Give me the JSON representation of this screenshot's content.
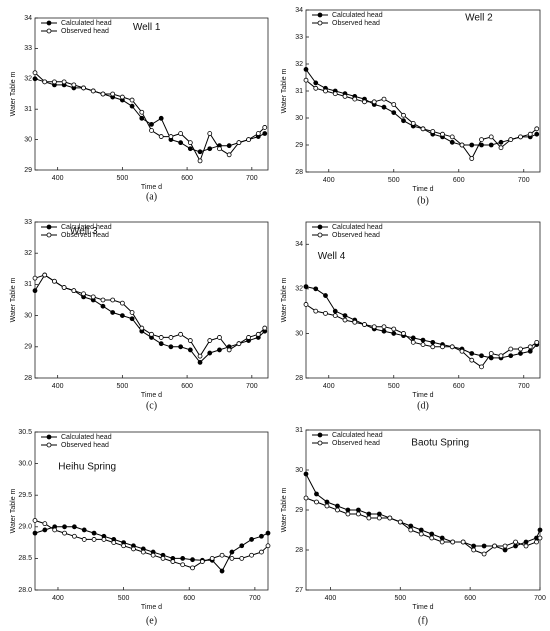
{
  "chart_data": [
    {
      "type": "line",
      "title": "Well 1",
      "panel_label": "(a)",
      "xlabel": "Time d",
      "ylabel": "Water Table m",
      "x": [
        365,
        380,
        395,
        410,
        425,
        440,
        455,
        470,
        485,
        500,
        515,
        530,
        545,
        560,
        575,
        590,
        605,
        620,
        635,
        650,
        665,
        680,
        695,
        710,
        720
      ],
      "xlim": [
        365,
        725
      ],
      "xticks": [
        400,
        500,
        600,
        700
      ],
      "ylim": [
        29,
        34
      ],
      "yticks": [
        29,
        30,
        31,
        32,
        33,
        34
      ],
      "legend": "upper left",
      "series": [
        {
          "name": "Calculated head",
          "color": "#000000",
          "marker": "filled",
          "values": [
            32.0,
            31.9,
            31.8,
            31.8,
            31.7,
            31.7,
            31.6,
            31.5,
            31.4,
            31.3,
            31.1,
            30.7,
            30.5,
            30.7,
            30.0,
            29.9,
            29.7,
            29.6,
            29.7,
            29.8,
            29.8,
            29.9,
            30.0,
            30.1,
            30.2
          ]
        },
        {
          "name": "Observed head",
          "color": "#000000",
          "marker": "open",
          "values": [
            32.2,
            31.9,
            31.9,
            31.9,
            31.8,
            31.7,
            31.6,
            31.5,
            31.5,
            31.4,
            31.3,
            30.9,
            30.3,
            30.1,
            30.1,
            30.2,
            29.9,
            29.3,
            30.2,
            29.7,
            29.5,
            29.9,
            30.0,
            30.2,
            30.4
          ]
        }
      ]
    },
    {
      "type": "line",
      "title": "Well 2",
      "panel_label": "(b)",
      "xlabel": "Time d",
      "ylabel": "Water Table m",
      "x": [
        365,
        380,
        395,
        410,
        425,
        440,
        455,
        470,
        485,
        500,
        515,
        530,
        545,
        560,
        575,
        590,
        605,
        620,
        635,
        650,
        665,
        680,
        695,
        710,
        720
      ],
      "xlim": [
        365,
        725
      ],
      "xticks": [
        400,
        500,
        600,
        700
      ],
      "ylim": [
        28,
        34
      ],
      "yticks": [
        28,
        29,
        30,
        31,
        32,
        33,
        34
      ],
      "legend": "upper left",
      "series": [
        {
          "name": "Calculated head",
          "color": "#000000",
          "marker": "filled",
          "values": [
            31.8,
            31.3,
            31.1,
            31.0,
            30.9,
            30.8,
            30.7,
            30.5,
            30.4,
            30.2,
            29.9,
            29.7,
            29.6,
            29.4,
            29.3,
            29.1,
            29.0,
            29.0,
            29.0,
            29.0,
            29.1,
            29.2,
            29.3,
            29.3,
            29.4
          ]
        },
        {
          "name": "Observed head",
          "color": "#000000",
          "marker": "open",
          "values": [
            31.4,
            31.1,
            31.0,
            30.9,
            30.8,
            30.7,
            30.6,
            30.6,
            30.7,
            30.5,
            30.1,
            29.8,
            29.6,
            29.5,
            29.4,
            29.3,
            29.0,
            28.5,
            29.2,
            29.3,
            28.9,
            29.2,
            29.3,
            29.4,
            29.6
          ]
        }
      ]
    },
    {
      "type": "line",
      "title": "Well 3",
      "panel_label": "(c)",
      "xlabel": "Time d",
      "ylabel": "Water Table m",
      "x": [
        365,
        380,
        395,
        410,
        425,
        440,
        455,
        470,
        485,
        500,
        515,
        530,
        545,
        560,
        575,
        590,
        605,
        620,
        635,
        650,
        665,
        680,
        695,
        710,
        720
      ],
      "xlim": [
        365,
        725
      ],
      "xticks": [
        400,
        500,
        600,
        700
      ],
      "ylim": [
        28,
        33
      ],
      "yticks": [
        28,
        29,
        30,
        31,
        32,
        33
      ],
      "legend": "upper left",
      "series": [
        {
          "name": "Calculated head",
          "color": "#000000",
          "marker": "filled",
          "values": [
            30.8,
            31.3,
            31.1,
            30.9,
            30.8,
            30.6,
            30.5,
            30.3,
            30.1,
            30.0,
            29.9,
            29.5,
            29.3,
            29.1,
            29.0,
            29.0,
            28.9,
            28.5,
            28.8,
            28.9,
            29.0,
            29.1,
            29.2,
            29.3,
            29.5
          ]
        },
        {
          "name": "Observed head",
          "color": "#000000",
          "marker": "open",
          "values": [
            31.2,
            31.3,
            31.1,
            30.9,
            30.8,
            30.7,
            30.6,
            30.5,
            30.5,
            30.4,
            30.1,
            29.6,
            29.4,
            29.3,
            29.3,
            29.4,
            29.2,
            28.7,
            29.2,
            29.3,
            28.9,
            29.1,
            29.3,
            29.4,
            29.6
          ]
        }
      ]
    },
    {
      "type": "line",
      "title": "Well 4",
      "panel_label": "(d)",
      "xlabel": "Time d",
      "ylabel": "Water Table m",
      "x": [
        365,
        380,
        395,
        410,
        425,
        440,
        455,
        470,
        485,
        500,
        515,
        530,
        545,
        560,
        575,
        590,
        605,
        620,
        635,
        650,
        665,
        680,
        695,
        710,
        720
      ],
      "xlim": [
        365,
        725
      ],
      "xticks": [
        400,
        500,
        600,
        700
      ],
      "ylim": [
        28,
        35
      ],
      "yticks": [
        28,
        30,
        32,
        34
      ],
      "legend": "upper left",
      "series": [
        {
          "name": "Calculated head",
          "color": "#000000",
          "marker": "filled",
          "values": [
            32.1,
            32.0,
            31.7,
            31.0,
            30.8,
            30.6,
            30.4,
            30.2,
            30.1,
            30.0,
            29.9,
            29.8,
            29.7,
            29.6,
            29.5,
            29.4,
            29.3,
            29.1,
            29.0,
            28.9,
            28.9,
            29.0,
            29.1,
            29.2,
            29.5
          ]
        },
        {
          "name": "Observed head",
          "color": "#000000",
          "marker": "open",
          "values": [
            31.3,
            31.0,
            30.9,
            30.8,
            30.6,
            30.5,
            30.4,
            30.3,
            30.3,
            30.2,
            30.0,
            29.6,
            29.5,
            29.4,
            29.4,
            29.4,
            29.2,
            28.8,
            28.5,
            29.1,
            29.0,
            29.3,
            29.3,
            29.4,
            29.6
          ]
        }
      ]
    },
    {
      "type": "line",
      "title": "Heihu Spring",
      "panel_label": "(e)",
      "xlabel": "Time d",
      "ylabel": "Water Table m",
      "x": [
        365,
        380,
        395,
        410,
        425,
        440,
        455,
        470,
        485,
        500,
        515,
        530,
        545,
        560,
        575,
        590,
        605,
        620,
        635,
        650,
        665,
        680,
        695,
        710,
        720
      ],
      "xlim": [
        365,
        720
      ],
      "xticks": [
        400,
        500,
        600,
        700
      ],
      "ylim": [
        28,
        30.5
      ],
      "yticks": [
        {
          "value": 28,
          "label": "28.0"
        },
        28.5,
        {
          "value": 29,
          "label": "29.0"
        },
        29.5,
        {
          "value": 30,
          "label": "30.0"
        },
        30.5
      ],
      "legend": "upper left",
      "series": [
        {
          "name": "Calculated head",
          "color": "#000000",
          "marker": "filled",
          "values": [
            28.9,
            28.95,
            29.0,
            29.0,
            29.0,
            28.95,
            28.9,
            28.85,
            28.8,
            28.75,
            28.7,
            28.65,
            28.6,
            28.55,
            28.5,
            28.5,
            28.48,
            28.47,
            28.47,
            28.3,
            28.6,
            28.7,
            28.8,
            28.85,
            28.9
          ]
        },
        {
          "name": "Observed head",
          "color": "#000000",
          "marker": "open",
          "values": [
            29.1,
            29.05,
            28.95,
            28.9,
            28.85,
            28.8,
            28.8,
            28.8,
            28.75,
            28.7,
            28.65,
            28.6,
            28.55,
            28.5,
            28.45,
            28.4,
            28.35,
            28.45,
            28.5,
            28.55,
            28.5,
            28.5,
            28.55,
            28.6,
            28.7
          ]
        }
      ]
    },
    {
      "type": "line",
      "title": "Baotu Spring",
      "panel_label": "(f)",
      "xlabel": "Time d",
      "ylabel": "Water Table m",
      "x": [
        365,
        380,
        395,
        410,
        425,
        440,
        455,
        470,
        485,
        500,
        515,
        530,
        545,
        560,
        575,
        590,
        605,
        620,
        635,
        650,
        665,
        680,
        695,
        700
      ],
      "xlim": [
        365,
        700
      ],
      "xticks": [
        400,
        500,
        600,
        700
      ],
      "ylim": [
        27,
        31
      ],
      "yticks": [
        27,
        28,
        29,
        30,
        31
      ],
      "legend": "upper left",
      "series": [
        {
          "name": "Calculated head",
          "color": "#000000",
          "marker": "filled",
          "values": [
            29.9,
            29.4,
            29.2,
            29.1,
            29.0,
            29.0,
            28.9,
            28.9,
            28.8,
            28.7,
            28.6,
            28.5,
            28.4,
            28.3,
            28.2,
            28.2,
            28.1,
            28.1,
            28.1,
            28.0,
            28.1,
            28.2,
            28.3,
            28.5
          ]
        },
        {
          "name": "Observed head",
          "color": "#000000",
          "marker": "open",
          "values": [
            29.3,
            29.2,
            29.1,
            29.0,
            28.9,
            28.9,
            28.8,
            28.8,
            28.8,
            28.7,
            28.5,
            28.4,
            28.3,
            28.2,
            28.2,
            28.2,
            28.0,
            27.9,
            28.1,
            28.1,
            28.2,
            28.1,
            28.2,
            28.3
          ]
        }
      ]
    }
  ]
}
